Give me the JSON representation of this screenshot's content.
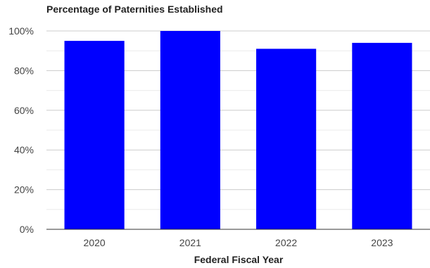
{
  "chart_data": {
    "type": "bar",
    "title": "Percentage of Paternities Established",
    "xlabel": "Federal Fiscal Year",
    "ylabel": "",
    "categories": [
      "2020",
      "2021",
      "2022",
      "2023"
    ],
    "values": [
      95,
      100,
      91,
      94
    ],
    "ylim": [
      0,
      100
    ],
    "yticks": [
      "0%",
      "20%",
      "40%",
      "60%",
      "80%",
      "100%"
    ],
    "ytick_values": [
      0,
      20,
      40,
      60,
      80,
      100
    ],
    "bar_color": "#0000ff",
    "grid": true,
    "legend": "none"
  }
}
